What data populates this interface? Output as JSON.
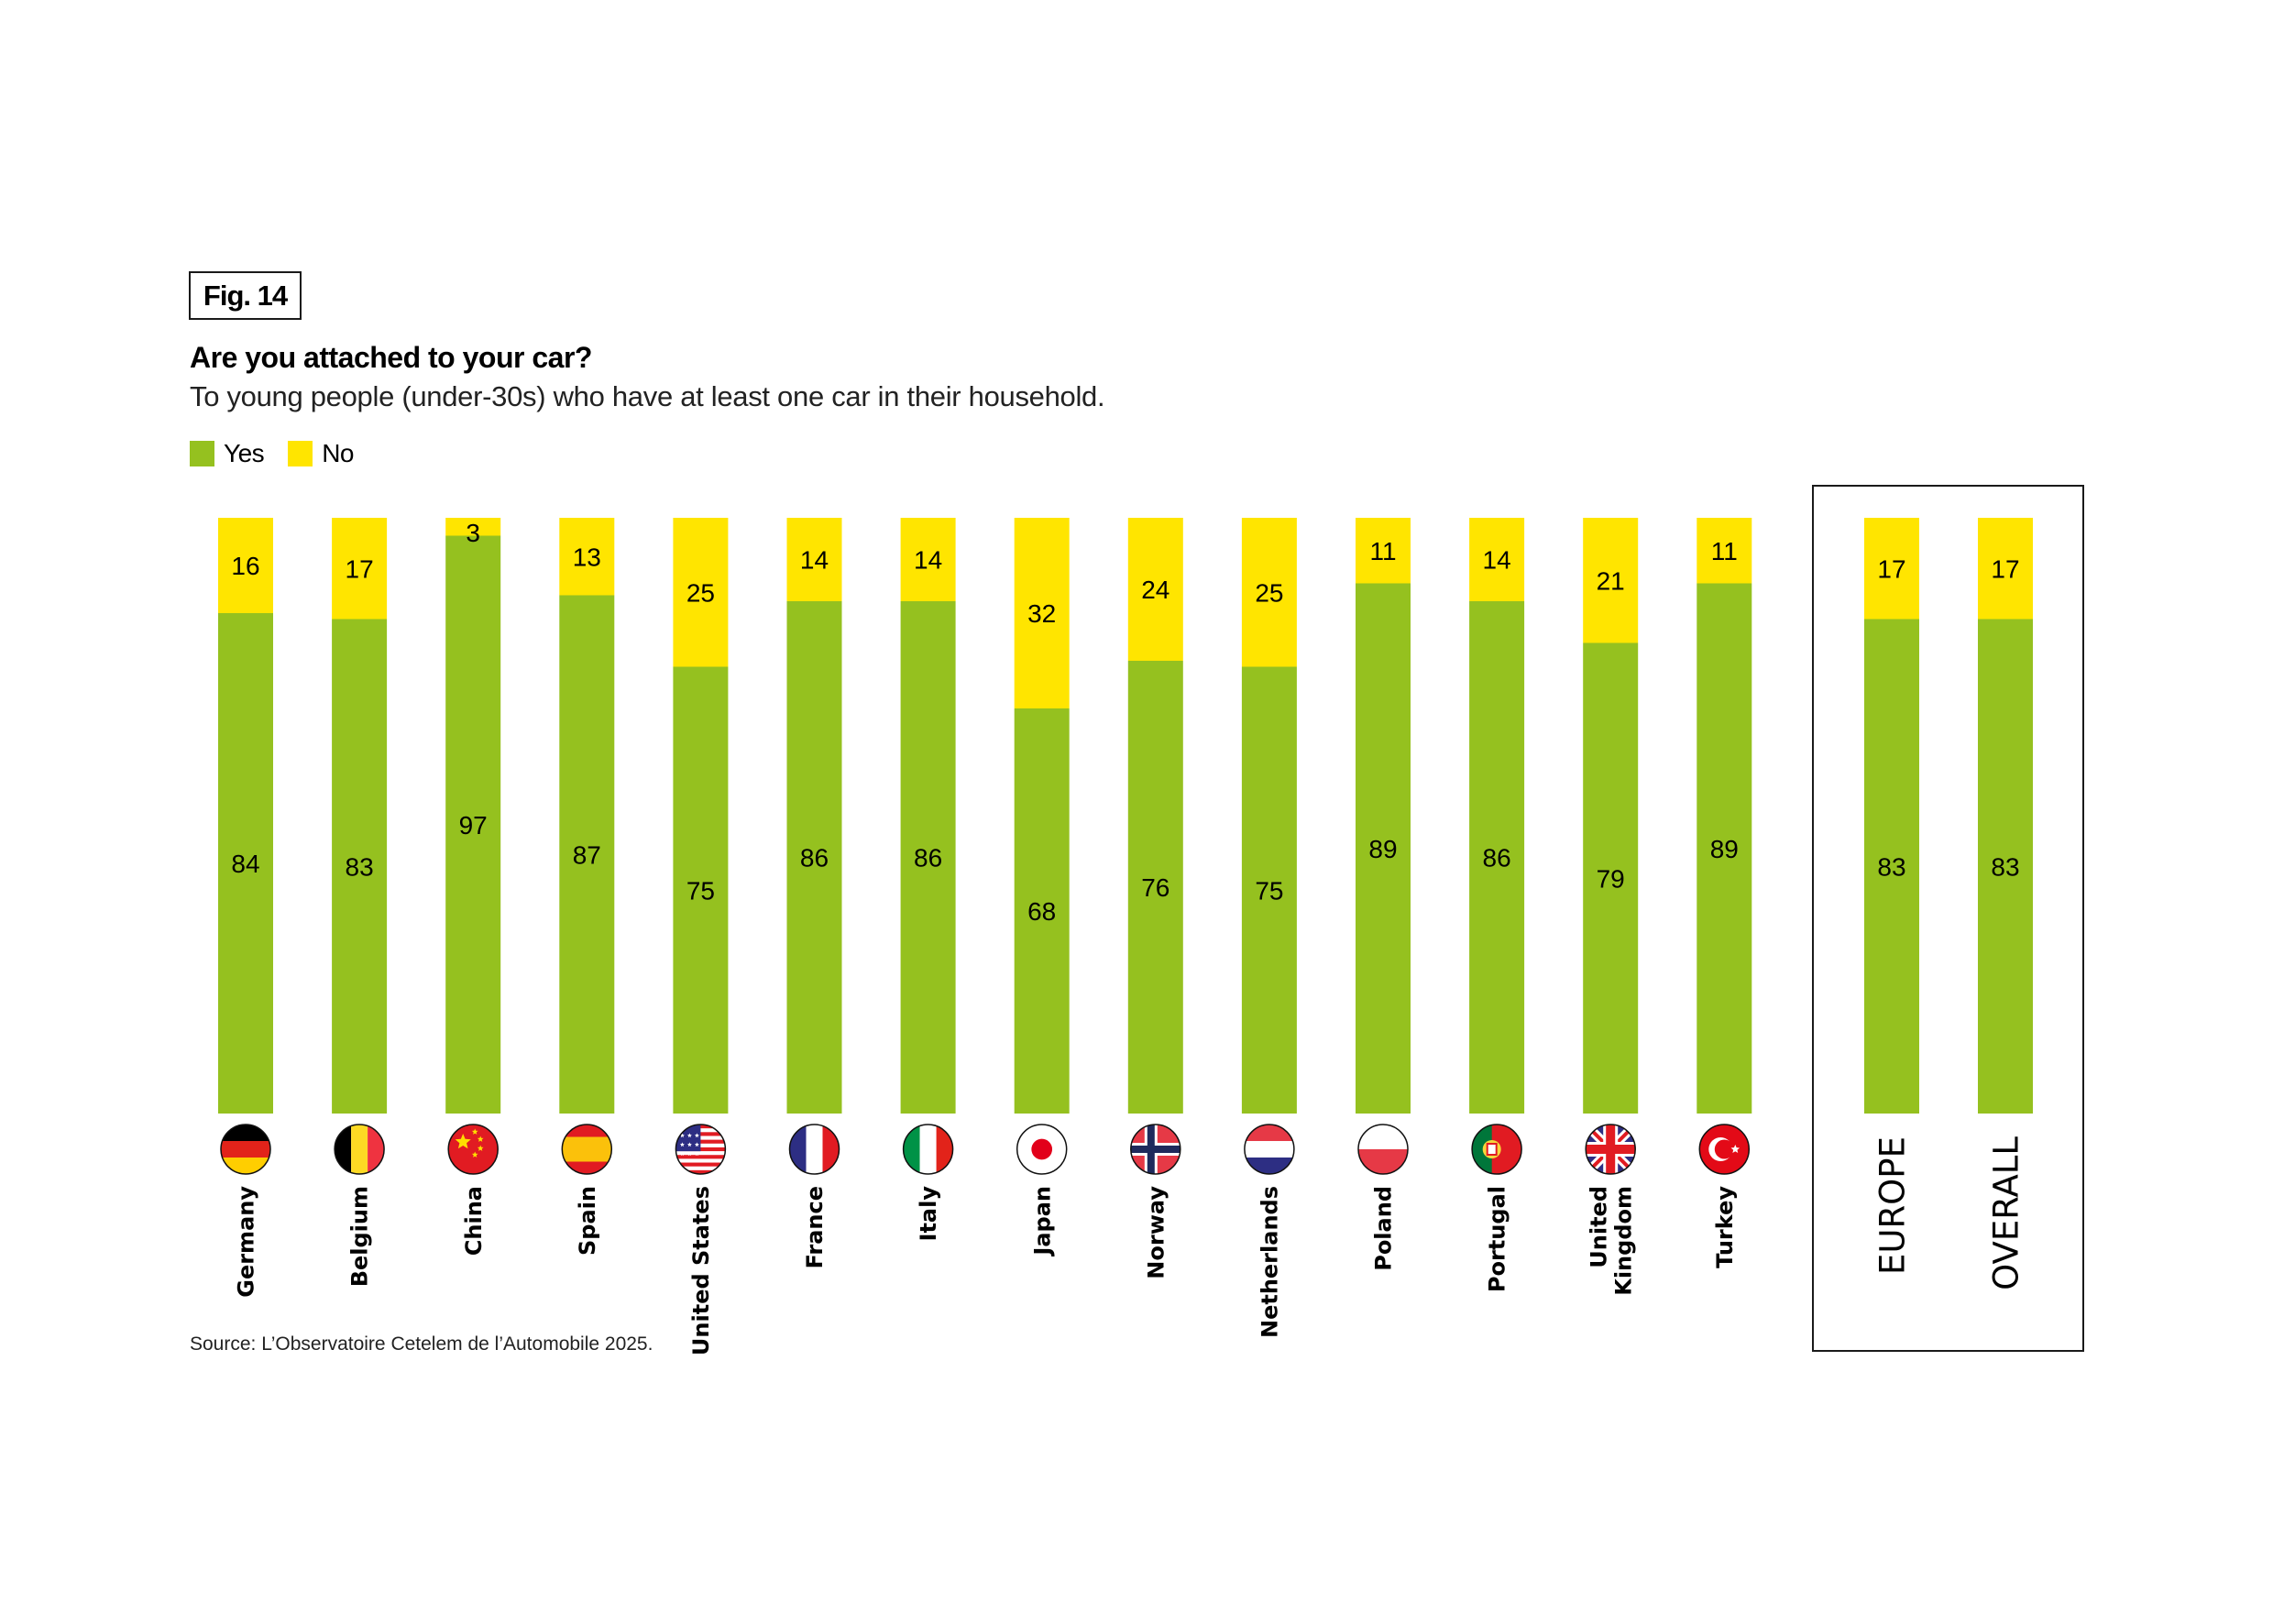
{
  "figure_label": "Fig. 14",
  "source": "Source: L’Observatoire Cetelem de l’Automobile 2025.",
  "colors": {
    "yes": "#95C11F",
    "no": "#FFE500",
    "text": "#000000",
    "frame": "#1a1a1a"
  },
  "chart_data": {
    "type": "bar",
    "stacked": true,
    "orientation": "vertical",
    "title": "Are you attached to your car?",
    "subtitle": "To young people (under-30s) who have at least one car in their household.",
    "xlabel": "",
    "ylabel": "",
    "ylim": [
      0,
      100
    ],
    "grid": false,
    "legend_position": "top-left",
    "legend": [
      {
        "name": "Yes",
        "color": "#95C11F"
      },
      {
        "name": "No",
        "color": "#FFE500"
      }
    ],
    "categories": [
      "Germany",
      "Belgium",
      "China",
      "Spain",
      "United States",
      "France",
      "Italy",
      "Japan",
      "Norway",
      "Netherlands",
      "Poland",
      "Portugal",
      "United Kingdom",
      "Turkey",
      "EUROPE",
      "OVERALL"
    ],
    "category_labels": [
      [
        "Germany"
      ],
      [
        "Belgium"
      ],
      [
        "China"
      ],
      [
        "Spain"
      ],
      [
        "United States"
      ],
      [
        "France"
      ],
      [
        "Italy"
      ],
      [
        "Japan"
      ],
      [
        "Norway"
      ],
      [
        "Netherlands"
      ],
      [
        "Poland"
      ],
      [
        "Portugal"
      ],
      [
        "United",
        "Kingdom"
      ],
      [
        "Turkey"
      ],
      [
        "EUROPE"
      ],
      [
        "OVERALL"
      ]
    ],
    "flags": [
      "germany-flag",
      "belgium-flag",
      "china-flag",
      "spain-flag",
      "usa-flag",
      "france-flag",
      "italy-flag",
      "japan-flag",
      "norway-flag",
      "netherlands-flag",
      "poland-flag",
      "portugal-flag",
      "uk-flag",
      "turkey-flag",
      null,
      null
    ],
    "highlighted_group": [
      "EUROPE",
      "OVERALL"
    ],
    "series": [
      {
        "name": "Yes",
        "values": [
          84,
          83,
          97,
          87,
          75,
          86,
          86,
          68,
          76,
          75,
          89,
          86,
          79,
          89,
          83,
          83
        ]
      },
      {
        "name": "No",
        "values": [
          16,
          17,
          3,
          13,
          25,
          14,
          14,
          32,
          24,
          25,
          11,
          14,
          21,
          11,
          17,
          17
        ]
      }
    ]
  }
}
